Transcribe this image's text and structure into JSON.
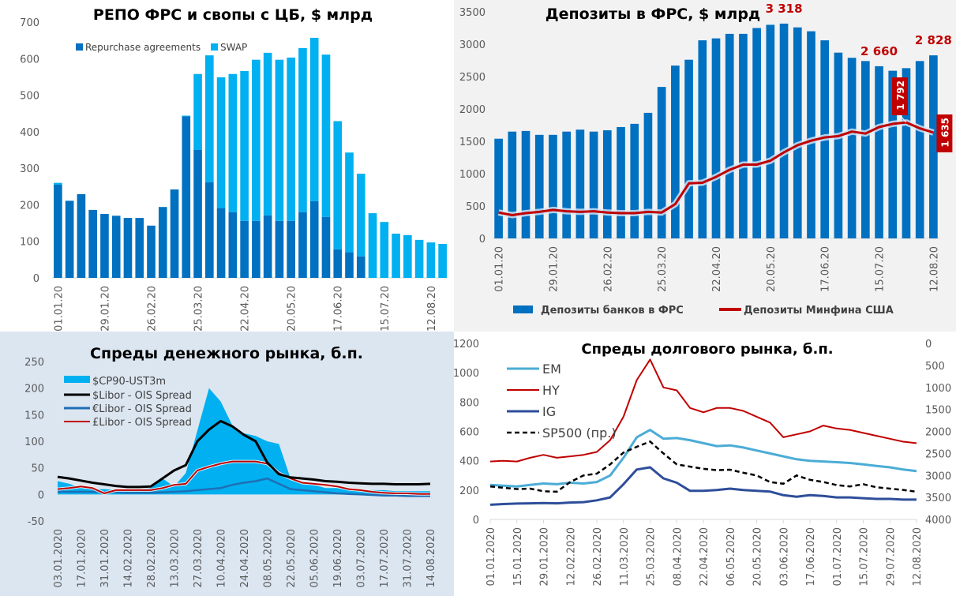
{
  "chart_data": [
    {
      "id": "repo",
      "type": "bar",
      "stacked": true,
      "title": "РЕПО ФРС и свопы с ЦБ, $ млрд",
      "ylim": [
        0,
        700
      ],
      "yticks": [
        0,
        100,
        200,
        300,
        400,
        500,
        600,
        700
      ],
      "xtick_labels": [
        "01.01.20",
        "29.01.20",
        "26.02.20",
        "25.03.20",
        "22.04.20",
        "20.05.20",
        "17.06.20",
        "15.07.20",
        "12.08.20"
      ],
      "xtick_every": 4,
      "legend": [
        "Repurchase agreements",
        "SWAP"
      ],
      "legend_position": "top-left",
      "colors": {
        "repo": "#0070c0",
        "swap": "#00b0f0"
      },
      "series": [
        {
          "name": "Repurchase agreements",
          "values": [
            255,
            211,
            229,
            186,
            175,
            170,
            164,
            164,
            143,
            194,
            242,
            442,
            350,
            262,
            191,
            180,
            156,
            156,
            171,
            156,
            156,
            180,
            210,
            167,
            78,
            70,
            59,
            0,
            0,
            0,
            0,
            0,
            0,
            0
          ]
        },
        {
          "name": "SWAP",
          "values": [
            5,
            0,
            0,
            0,
            0,
            0,
            0,
            0,
            0,
            0,
            0,
            2,
            208,
            347,
            358,
            378,
            410,
            441,
            445,
            441,
            447,
            449,
            447,
            444,
            351,
            273,
            226,
            177,
            153,
            121,
            117,
            104,
            97,
            93
          ]
        }
      ]
    },
    {
      "id": "deposits",
      "type": "bar+line",
      "title": "Депозиты в ФРС, $ млрд",
      "ylim": [
        0,
        3500
      ],
      "yticks": [
        0,
        500,
        1000,
        1500,
        2000,
        2500,
        3000,
        3500
      ],
      "xtick_labels": [
        "01.01.20",
        "29.01.20",
        "26.02.20",
        "25.03.20",
        "22.04.20",
        "20.05.20",
        "17.06.20",
        "15.07.20",
        "12.08.20"
      ],
      "xtick_every": 4,
      "legend": [
        "Депозиты банков в ФРС",
        "Депозиты Минфина США"
      ],
      "legend_position": "bottom",
      "colors": {
        "bars": "#0070c0",
        "line": "#c00000",
        "label": "#c00000"
      },
      "series": [
        {
          "name": "Депозиты банков в ФРС",
          "values": [
            1540,
            1650,
            1660,
            1600,
            1600,
            1650,
            1680,
            1650,
            1670,
            1720,
            1770,
            1940,
            2340,
            2670,
            2760,
            3060,
            3090,
            3160,
            3160,
            3250,
            3300,
            3318,
            3260,
            3200,
            3060,
            2870,
            2790,
            2740,
            2660,
            2590,
            2630,
            2740,
            2828
          ]
        },
        {
          "name": "Депозиты Минфина США",
          "values": [
            400,
            360,
            390,
            410,
            440,
            420,
            410,
            420,
            400,
            390,
            390,
            410,
            400,
            530,
            850,
            860,
            950,
            1060,
            1140,
            1140,
            1200,
            1330,
            1440,
            1510,
            1560,
            1580,
            1650,
            1620,
            1720,
            1770,
            1792,
            1700,
            1635
          ]
        }
      ],
      "annotations": [
        {
          "text": "3 318",
          "series": 0,
          "index": 21
        },
        {
          "text": "2 660",
          "series": 0,
          "index": 28
        },
        {
          "text": "2 828",
          "series": 0,
          "index": 32
        },
        {
          "text": "1 792",
          "series": 1,
          "index": 30,
          "boxed": true
        },
        {
          "text": "1 635",
          "series": 1,
          "index": 32,
          "boxed": true
        }
      ]
    },
    {
      "id": "money",
      "type": "line+area",
      "title": "Спреды денежного рынка, б.п.",
      "ylim": [
        -50,
        250
      ],
      "yticks": [
        -50,
        0,
        50,
        100,
        150,
        200,
        250
      ],
      "xtick_labels": [
        "03.01.2020",
        "17.01.2020",
        "31.01.2020",
        "14.02.2020",
        "28.02.2020",
        "13.03.2020",
        "27.03.2020",
        "10.04.2020",
        "24.04.2020",
        "08.05.2020",
        "22.05.2020",
        "05.06.2020",
        "19.06.2020",
        "03.07.2020",
        "17.07.2020",
        "31.07.2020",
        "14.08.2020"
      ],
      "legend": [
        "$CP90-UST3m",
        "$Libor - OIS Spread",
        "€Libor - OIS Spread",
        "£Libor - OIS Spread"
      ],
      "legend_position": "top-left",
      "colors": {
        "cp": "#00b0f0",
        "usd": "#000000",
        "eur": "#1f6fb5",
        "gbp": "#c00000"
      },
      "x_points": 33,
      "series": [
        {
          "name": "$CP90-UST3m",
          "values": [
            25,
            20,
            12,
            10,
            10,
            8,
            8,
            10,
            12,
            30,
            15,
            40,
            120,
            200,
            175,
            130,
            115,
            110,
            100,
            95,
            30,
            20,
            18,
            12,
            12,
            10,
            8,
            8,
            8,
            6,
            6,
            6,
            6
          ]
        },
        {
          "name": "$Libor - OIS Spread",
          "values": [
            33,
            30,
            26,
            22,
            19,
            16,
            14,
            14,
            15,
            30,
            45,
            55,
            100,
            122,
            138,
            128,
            112,
            100,
            60,
            38,
            32,
            30,
            28,
            25,
            24,
            22,
            21,
            20,
            20,
            19,
            19,
            19,
            20
          ]
        },
        {
          "name": "€Libor - OIS Spread",
          "values": [
            5,
            5,
            5,
            5,
            4,
            4,
            3,
            3,
            3,
            4,
            5,
            6,
            8,
            10,
            12,
            18,
            22,
            25,
            30,
            20,
            10,
            8,
            6,
            4,
            2,
            1,
            0,
            -1,
            -2,
            -2,
            -3,
            -3,
            -3
          ]
        },
        {
          "name": "£Libor - OIS Spread",
          "values": [
            10,
            12,
            15,
            12,
            2,
            8,
            8,
            8,
            8,
            12,
            18,
            20,
            45,
            52,
            58,
            62,
            62,
            62,
            58,
            40,
            30,
            22,
            20,
            18,
            15,
            10,
            8,
            5,
            3,
            2,
            2,
            1,
            1
          ]
        }
      ]
    },
    {
      "id": "debt",
      "type": "line",
      "title": "Спреды долгового рынка, б.п.",
      "ylim": [
        0,
        1200
      ],
      "yticks": [
        0,
        200,
        400,
        600,
        800,
        1000,
        1200
      ],
      "y2lim": [
        4000,
        0
      ],
      "y2ticks": [
        0,
        500,
        1000,
        1500,
        2000,
        2500,
        3000,
        3500,
        4000
      ],
      "xtick_labels": [
        "01.01.2020",
        "15.01.2020",
        "29.01.2020",
        "12.02.2020",
        "26.02.2020",
        "11.03.2020",
        "25.03.2020",
        "08.04.2020",
        "22.04.2020",
        "06.05.2020",
        "20.05.2020",
        "03.06.2020",
        "17.06.2020",
        "01.07.2020",
        "15.07.2020",
        "29.07.2020",
        "12.08.2020"
      ],
      "legend": [
        "EM",
        "HY",
        "IG",
        "SP500 (пр.)"
      ],
      "legend_position": "top-left",
      "colors": {
        "EM": "#4bacd6",
        "HY": "#c00000",
        "IG": "#2e4e9a",
        "SP500": "#000000"
      },
      "x_points": 33,
      "series": [
        {
          "name": "EM",
          "values": [
            235,
            230,
            225,
            235,
            245,
            240,
            250,
            245,
            255,
            300,
            420,
            560,
            610,
            550,
            555,
            540,
            520,
            500,
            505,
            490,
            470,
            450,
            430,
            410,
            400,
            395,
            390,
            385,
            375,
            365,
            355,
            340,
            330
          ]
        },
        {
          "name": "HY",
          "values": [
            395,
            400,
            395,
            420,
            440,
            420,
            430,
            440,
            460,
            540,
            700,
            950,
            1090,
            900,
            880,
            760,
            730,
            760,
            760,
            740,
            700,
            660,
            560,
            580,
            600,
            640,
            620,
            610,
            590,
            570,
            550,
            530,
            520
          ]
        },
        {
          "name": "IG",
          "values": [
            100,
            105,
            108,
            110,
            112,
            110,
            115,
            118,
            130,
            150,
            240,
            340,
            355,
            280,
            250,
            195,
            195,
            200,
            210,
            200,
            195,
            190,
            165,
            155,
            165,
            160,
            150,
            150,
            145,
            140,
            140,
            135,
            135
          ]
        },
        {
          "name": "SP500 (пр.)",
          "values": [
            3250,
            3280,
            3310,
            3300,
            3360,
            3370,
            3150,
            3000,
            2960,
            2750,
            2480,
            2350,
            2230,
            2500,
            2750,
            2800,
            2850,
            2880,
            2870,
            2940,
            3000,
            3150,
            3190,
            3000,
            3100,
            3150,
            3220,
            3250,
            3200,
            3270,
            3300,
            3330,
            3370
          ]
        }
      ]
    }
  ]
}
